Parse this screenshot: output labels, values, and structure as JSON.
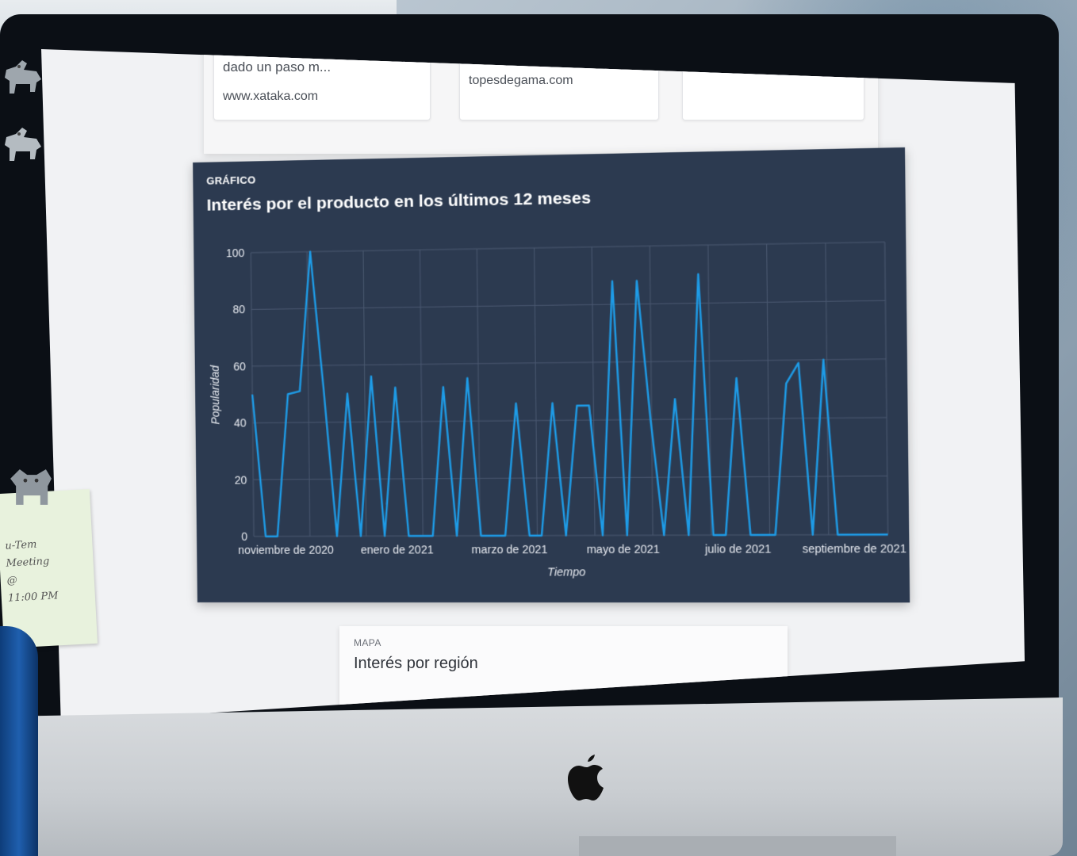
{
  "results": [
    {
      "snippet": "dado un paso m...",
      "domain": "www.xataka.com"
    },
    {
      "snippet": "",
      "domain": "topesdegama.com"
    },
    {
      "snippet": "",
      "domain": ""
    }
  ],
  "chart_panel": {
    "kicker": "GRÁFICO",
    "title": "Interés por el producto en los últimos 12 meses"
  },
  "map_panel": {
    "kicker": "MAPA",
    "title": "Interés por región"
  },
  "sticky_note": {
    "text": "u-Tem\nMeeting\n@\n11:00 PM"
  },
  "icons": {
    "brand": "apple-logo-icon",
    "magnet": "dog-magnet-icon"
  },
  "colors": {
    "chart_background": "#2c3a50",
    "line": "#1e9be6",
    "grid": "#4a5870"
  },
  "chart_data": {
    "type": "line",
    "title": "Interés por el producto en los últimos 12 meses",
    "xlabel": "Tiempo",
    "ylabel": "Popularidad",
    "ylim": [
      0,
      100
    ],
    "yticks": [
      0,
      20,
      40,
      60,
      80,
      100
    ],
    "xtick_labels": [
      "noviembre de 2020",
      "enero de 2021",
      "marzo de 2021",
      "mayo de 2021",
      "julio de 2021",
      "septiembre de 2021"
    ],
    "grid": true,
    "series": [
      {
        "values": [
          50,
          0,
          0,
          50,
          51,
          100,
          52,
          0,
          50,
          0,
          56,
          0,
          52,
          0,
          0,
          0,
          52,
          0,
          55,
          0,
          0,
          0,
          46,
          0,
          0,
          46,
          0,
          45,
          45,
          0,
          88,
          0,
          88,
          40,
          0,
          47,
          0,
          90,
          0,
          0,
          54,
          0,
          0,
          0,
          52,
          59,
          0,
          60,
          0,
          0,
          0,
          0,
          0
        ]
      }
    ]
  }
}
